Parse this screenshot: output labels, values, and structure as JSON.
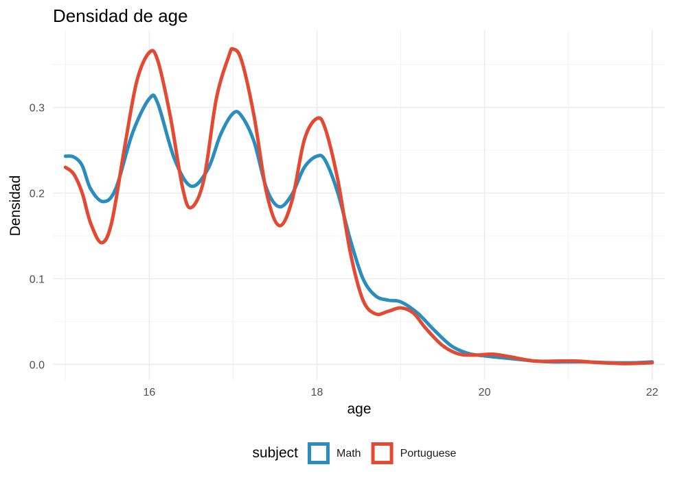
{
  "chart_data": {
    "type": "line",
    "title": "Densidad de age",
    "xlabel": "age",
    "ylabel": "Densidad",
    "xlim": [
      14.85,
      22.15
    ],
    "ylim": [
      -0.018,
      0.39
    ],
    "x_ticks": [
      16,
      18,
      20,
      22
    ],
    "x_tick_labels": [
      "16",
      "18",
      "20",
      "22"
    ],
    "x_minor_ticks": [
      15,
      17,
      19,
      21
    ],
    "y_ticks": [
      0.0,
      0.1,
      0.2,
      0.3
    ],
    "y_tick_labels": [
      "0.0",
      "0.1",
      "0.2",
      "0.3"
    ],
    "y_minor_ticks": [
      0.05,
      0.15,
      0.25,
      0.35
    ],
    "grid": true,
    "legend": {
      "title": "subject",
      "position": "bottom"
    },
    "series": [
      {
        "name": "Math",
        "color": "#2b8cbe",
        "points": [
          [
            15.0,
            0.243
          ],
          [
            15.1,
            0.242
          ],
          [
            15.2,
            0.232
          ],
          [
            15.3,
            0.205
          ],
          [
            15.45,
            0.19
          ],
          [
            15.6,
            0.205
          ],
          [
            15.8,
            0.27
          ],
          [
            16.0,
            0.31
          ],
          [
            16.1,
            0.305
          ],
          [
            16.3,
            0.24
          ],
          [
            16.5,
            0.208
          ],
          [
            16.7,
            0.228
          ],
          [
            16.85,
            0.268
          ],
          [
            17.0,
            0.293
          ],
          [
            17.1,
            0.29
          ],
          [
            17.25,
            0.26
          ],
          [
            17.4,
            0.205
          ],
          [
            17.55,
            0.184
          ],
          [
            17.7,
            0.198
          ],
          [
            17.85,
            0.23
          ],
          [
            18.0,
            0.243
          ],
          [
            18.1,
            0.238
          ],
          [
            18.25,
            0.2
          ],
          [
            18.4,
            0.145
          ],
          [
            18.55,
            0.1
          ],
          [
            18.7,
            0.08
          ],
          [
            18.85,
            0.075
          ],
          [
            19.0,
            0.073
          ],
          [
            19.2,
            0.06
          ],
          [
            19.4,
            0.04
          ],
          [
            19.6,
            0.022
          ],
          [
            19.8,
            0.013
          ],
          [
            20.0,
            0.01
          ],
          [
            20.2,
            0.008
          ],
          [
            20.4,
            0.006
          ],
          [
            20.6,
            0.004
          ],
          [
            20.8,
            0.003
          ],
          [
            21.0,
            0.003
          ],
          [
            21.2,
            0.003
          ],
          [
            21.5,
            0.002
          ],
          [
            21.8,
            0.002
          ],
          [
            22.0,
            0.003
          ]
        ]
      },
      {
        "name": "Portuguese",
        "color": "#e34a33",
        "points": [
          [
            15.0,
            0.23
          ],
          [
            15.1,
            0.222
          ],
          [
            15.2,
            0.2
          ],
          [
            15.3,
            0.165
          ],
          [
            15.43,
            0.142
          ],
          [
            15.55,
            0.165
          ],
          [
            15.7,
            0.25
          ],
          [
            15.85,
            0.33
          ],
          [
            16.0,
            0.364
          ],
          [
            16.1,
            0.355
          ],
          [
            16.25,
            0.29
          ],
          [
            16.4,
            0.205
          ],
          [
            16.5,
            0.183
          ],
          [
            16.65,
            0.215
          ],
          [
            16.8,
            0.31
          ],
          [
            16.95,
            0.36
          ],
          [
            17.0,
            0.368
          ],
          [
            17.1,
            0.355
          ],
          [
            17.25,
            0.29
          ],
          [
            17.4,
            0.2
          ],
          [
            17.55,
            0.162
          ],
          [
            17.7,
            0.19
          ],
          [
            17.85,
            0.262
          ],
          [
            18.0,
            0.287
          ],
          [
            18.1,
            0.275
          ],
          [
            18.25,
            0.215
          ],
          [
            18.4,
            0.13
          ],
          [
            18.55,
            0.075
          ],
          [
            18.7,
            0.059
          ],
          [
            18.85,
            0.062
          ],
          [
            19.0,
            0.066
          ],
          [
            19.15,
            0.06
          ],
          [
            19.3,
            0.042
          ],
          [
            19.5,
            0.022
          ],
          [
            19.7,
            0.012
          ],
          [
            19.9,
            0.011
          ],
          [
            20.1,
            0.012
          ],
          [
            20.3,
            0.009
          ],
          [
            20.6,
            0.004
          ],
          [
            20.9,
            0.004
          ],
          [
            21.1,
            0.004
          ],
          [
            21.4,
            0.002
          ],
          [
            21.7,
            0.001
          ],
          [
            22.0,
            0.002
          ]
        ]
      }
    ]
  }
}
